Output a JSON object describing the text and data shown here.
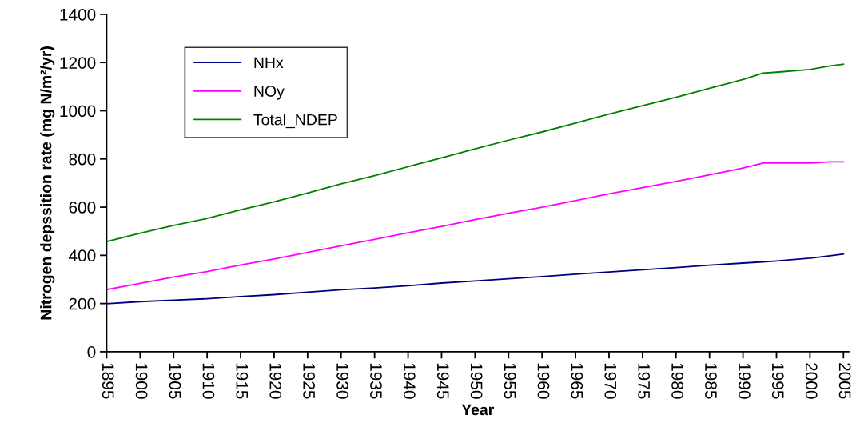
{
  "chart_data": {
    "type": "line",
    "xlabel": "Year",
    "ylabel": "Nitrogen depssition rate (mg N/m²/yr)",
    "x": [
      1895,
      1900,
      1905,
      1910,
      1915,
      1920,
      1925,
      1930,
      1935,
      1940,
      1945,
      1950,
      1955,
      1960,
      1965,
      1970,
      1975,
      1980,
      1985,
      1990,
      1993,
      1995,
      2000,
      2003,
      2005
    ],
    "series": [
      {
        "name": "NHx",
        "color": "#000080",
        "values": [
          199,
          208,
          214,
          220,
          229,
          237,
          247,
          257,
          265,
          274,
          285,
          294,
          303,
          312,
          322,
          331,
          340,
          349,
          359,
          368,
          373,
          377,
          388,
          398,
          405
        ]
      },
      {
        "name": "NOy",
        "color": "#ff00ff",
        "values": [
          258,
          284,
          310,
          333,
          360,
          385,
          412,
          440,
          466,
          494,
          520,
          548,
          575,
          600,
          627,
          655,
          681,
          707,
          734,
          762,
          783,
          783,
          783,
          788,
          788
        ]
      },
      {
        "name": "Total_NDEP",
        "color": "#008000",
        "values": [
          457,
          492,
          524,
          553,
          589,
          622,
          659,
          697,
          731,
          768,
          805,
          842,
          878,
          912,
          949,
          986,
          1021,
          1056,
          1093,
          1130,
          1156,
          1160,
          1171,
          1186,
          1193
        ]
      }
    ],
    "xlim": [
      1895,
      2005.8
    ],
    "xticks": [
      1895,
      1900,
      1905,
      1910,
      1915,
      1920,
      1925,
      1930,
      1935,
      1940,
      1945,
      1950,
      1955,
      1960,
      1965,
      1970,
      1975,
      1980,
      1985,
      1990,
      1995,
      2000,
      2005
    ],
    "ylim": [
      0,
      1400
    ],
    "yticks": [
      0,
      200,
      400,
      600,
      800,
      1000,
      1200,
      1400
    ],
    "grid": false,
    "legend": "top left",
    "marker": "none",
    "line_style": "solid"
  }
}
